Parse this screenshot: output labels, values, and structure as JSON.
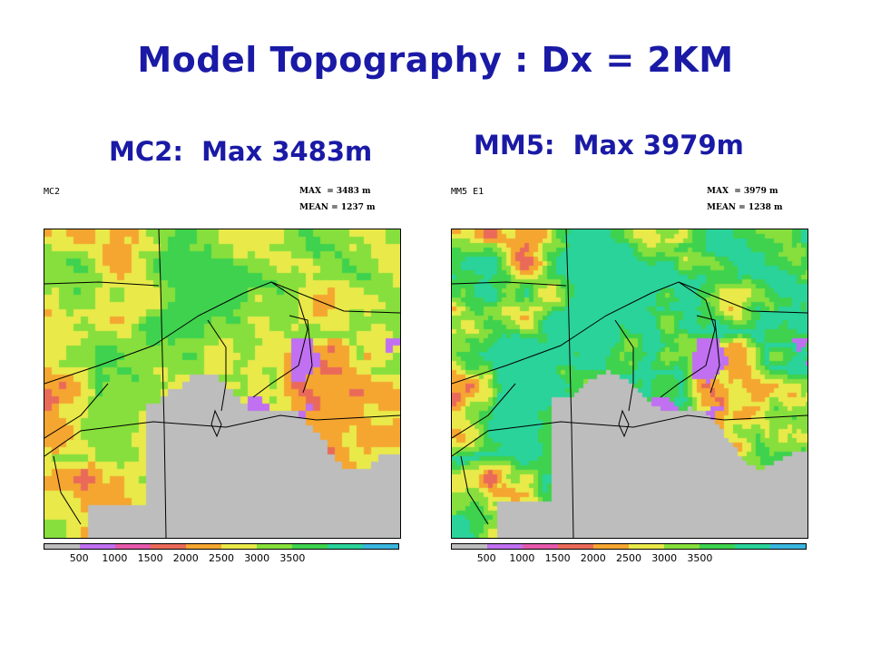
{
  "title": "Model Topography : Dx = 2KM",
  "panels": [
    {
      "subtitle": "MC2:  Max 3483m",
      "name": "MC2",
      "max_label": "MAX  = 3483 m",
      "mean_label": "MEAN = 1237 m",
      "max_m": 3483,
      "mean_m": 1237
    },
    {
      "subtitle": "MM5:  Max 3979m",
      "name": "MM5 E1",
      "max_label": "MAX  = 3979 m",
      "mean_label": "MEAN = 1238 m",
      "max_m": 3979,
      "mean_m": 1238
    }
  ],
  "colorbar": {
    "ticks": [
      "500",
      "1000",
      "1500",
      "2000",
      "2500",
      "3000",
      "3500"
    ],
    "colors": [
      "#bdbdbd",
      "#c070f0",
      "#e45aab",
      "#ea6a5a",
      "#f5a630",
      "#e9e94a",
      "#86df3c",
      "#3ed24e",
      "#2ad39a",
      "#3ab5de"
    ]
  }
}
